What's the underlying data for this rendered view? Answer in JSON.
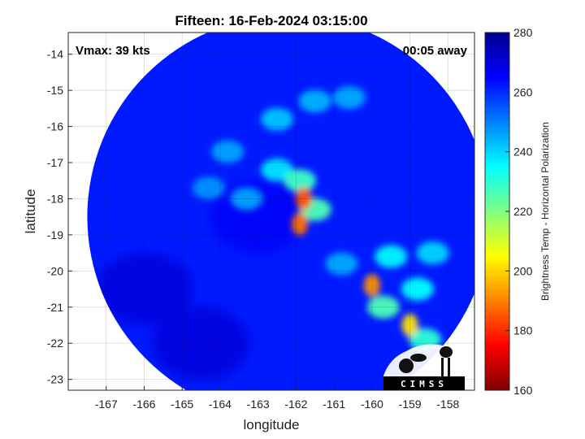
{
  "chart_data": {
    "type": "heatmap",
    "title": "Fifteen: 16-Feb-2024 03:15:00",
    "xlabel": "longitude",
    "ylabel": "latitude",
    "xlim": [
      -168,
      -157.3
    ],
    "ylim": [
      -23.3,
      -13.4
    ],
    "xticks": [
      -167,
      -166,
      -165,
      -164,
      -163,
      -162,
      -161,
      -160,
      -159,
      -158
    ],
    "yticks": [
      -14,
      -15,
      -16,
      -17,
      -18,
      -19,
      -20,
      -21,
      -22,
      -23
    ],
    "grid": true,
    "annotations": {
      "vmax": "Vmax: 39 kts",
      "time_away": "00:05 away"
    },
    "colorbar": {
      "label": "Brightness Temp - Horizontal Polarization",
      "min": 160,
      "max": 280,
      "ticks": [
        280,
        260,
        240,
        220,
        200,
        180,
        160
      ],
      "colormap": [
        "#7f0000",
        "#ff0000",
        "#ff8000",
        "#ffff00",
        "#80ff80",
        "#00ffff",
        "#0080ff",
        "#0000ff",
        "#00008f"
      ]
    },
    "swath": {
      "center": [
        -162.2,
        -18.5
      ],
      "radius_deg": 5.3
    },
    "background_tb": 262,
    "features": [
      {
        "lon": -161.8,
        "lat": -18.0,
        "tb": 185
      },
      {
        "lon": -161.9,
        "lat": -18.7,
        "tb": 188
      },
      {
        "lon": -161.9,
        "lat": -17.5,
        "tb": 228
      },
      {
        "lon": -162.5,
        "lat": -17.2,
        "tb": 238
      },
      {
        "lon": -161.5,
        "lat": -18.3,
        "tb": 226
      },
      {
        "lon": -162.5,
        "lat": -15.8,
        "tb": 242
      },
      {
        "lon": -161.5,
        "lat": -15.3,
        "tb": 244
      },
      {
        "lon": -160.6,
        "lat": -15.2,
        "tb": 245
      },
      {
        "lon": -163.8,
        "lat": -16.7,
        "tb": 246
      },
      {
        "lon": -164.3,
        "lat": -17.7,
        "tb": 248
      },
      {
        "lon": -160.0,
        "lat": -20.4,
        "tb": 192
      },
      {
        "lon": -159.0,
        "lat": -21.5,
        "tb": 202
      },
      {
        "lon": -159.5,
        "lat": -19.6,
        "tb": 236
      },
      {
        "lon": -158.8,
        "lat": -20.5,
        "tb": 235
      },
      {
        "lon": -159.7,
        "lat": -21.0,
        "tb": 226
      },
      {
        "lon": -158.6,
        "lat": -21.9,
        "tb": 230
      },
      {
        "lon": -158.4,
        "lat": -19.5,
        "tb": 240
      },
      {
        "lon": -160.8,
        "lat": -19.8,
        "tb": 245
      },
      {
        "lon": -163.3,
        "lat": -18.0,
        "tb": 246
      }
    ],
    "dark_regions": [
      {
        "lon": -166.0,
        "lat": -20.5,
        "tb": 270
      },
      {
        "lon": -164.5,
        "lat": -22.0,
        "tb": 270
      },
      {
        "lon": -163.0,
        "lat": -18.5,
        "tb": 266
      }
    ]
  },
  "logo": {
    "text": "CIMSS"
  }
}
